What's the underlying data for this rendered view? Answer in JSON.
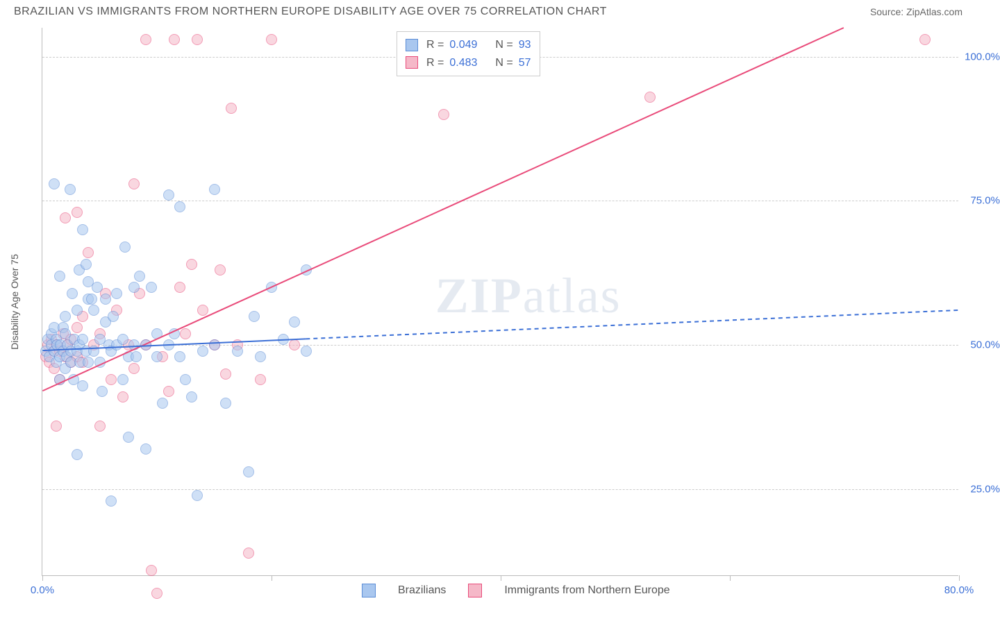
{
  "header": {
    "title": "BRAZILIAN VS IMMIGRANTS FROM NORTHERN EUROPE DISABILITY AGE OVER 75 CORRELATION CHART",
    "source_label": "Source:",
    "source_value": "ZipAtlas.com"
  },
  "watermark": {
    "part1": "ZIP",
    "part2": "atlas"
  },
  "chart": {
    "type": "scatter",
    "y_axis_label": "Disability Age Over 75",
    "xlim": [
      0,
      80
    ],
    "ylim": [
      10,
      105
    ],
    "y_ticks": [
      {
        "value": 25,
        "label": "25.0%"
      },
      {
        "value": 50,
        "label": "50.0%"
      },
      {
        "value": 75,
        "label": "75.0%"
      },
      {
        "value": 100,
        "label": "100.0%"
      }
    ],
    "x_ticks": [
      {
        "value": 0,
        "label": "0.0%"
      },
      {
        "value": 20,
        "label": ""
      },
      {
        "value": 40,
        "label": ""
      },
      {
        "value": 60,
        "label": ""
      },
      {
        "value": 80,
        "label": "80.0%"
      }
    ],
    "background_color": "#ffffff",
    "grid_color": "#cccccc",
    "marker_radius": 8,
    "marker_opacity": 0.55,
    "series": {
      "blue": {
        "label": "Brazilians",
        "fill": "#a9c7ef",
        "stroke": "#5a8cd6",
        "R": "0.049",
        "N": "93",
        "trend": {
          "x1": 0,
          "y1": 49,
          "x2": 80,
          "y2": 56,
          "solid_until_x": 23,
          "color": "#3b6fd6",
          "width": 2
        },
        "points": [
          [
            0.3,
            49
          ],
          [
            0.5,
            51
          ],
          [
            0.6,
            48
          ],
          [
            0.8,
            52
          ],
          [
            0.8,
            50
          ],
          [
            1.0,
            49
          ],
          [
            1.0,
            78
          ],
          [
            1.0,
            53
          ],
          [
            1.2,
            47
          ],
          [
            1.2,
            51
          ],
          [
            1.3,
            50
          ],
          [
            1.5,
            48
          ],
          [
            1.5,
            62
          ],
          [
            1.5,
            44
          ],
          [
            1.6,
            50
          ],
          [
            1.8,
            53
          ],
          [
            1.8,
            49
          ],
          [
            2.0,
            46
          ],
          [
            2.0,
            52
          ],
          [
            2.0,
            55
          ],
          [
            2.1,
            48
          ],
          [
            2.2,
            50
          ],
          [
            2.4,
            77
          ],
          [
            2.5,
            47
          ],
          [
            2.5,
            49
          ],
          [
            2.6,
            59
          ],
          [
            2.7,
            44
          ],
          [
            2.8,
            51
          ],
          [
            3.0,
            31
          ],
          [
            3.0,
            56
          ],
          [
            3.0,
            49
          ],
          [
            3.2,
            63
          ],
          [
            3.2,
            50
          ],
          [
            3.3,
            47
          ],
          [
            3.5,
            70
          ],
          [
            3.5,
            51
          ],
          [
            3.5,
            43
          ],
          [
            3.8,
            64
          ],
          [
            3.8,
            49
          ],
          [
            4.0,
            58
          ],
          [
            4.0,
            61
          ],
          [
            4.0,
            47
          ],
          [
            4.3,
            58
          ],
          [
            4.5,
            56
          ],
          [
            4.5,
            49
          ],
          [
            4.8,
            60
          ],
          [
            5.0,
            47
          ],
          [
            5.0,
            51
          ],
          [
            5.2,
            42
          ],
          [
            5.5,
            54
          ],
          [
            5.5,
            58
          ],
          [
            5.8,
            50
          ],
          [
            6.0,
            23
          ],
          [
            6.0,
            49
          ],
          [
            6.2,
            55
          ],
          [
            6.5,
            59
          ],
          [
            6.5,
            50
          ],
          [
            7.0,
            44
          ],
          [
            7.0,
            51
          ],
          [
            7.2,
            67
          ],
          [
            7.5,
            34
          ],
          [
            7.5,
            48
          ],
          [
            8.0,
            60
          ],
          [
            8.0,
            50
          ],
          [
            8.2,
            48
          ],
          [
            8.5,
            62
          ],
          [
            9.0,
            32
          ],
          [
            9.0,
            50
          ],
          [
            9.5,
            60
          ],
          [
            10.0,
            48
          ],
          [
            10.0,
            52
          ],
          [
            10.5,
            40
          ],
          [
            11.0,
            50
          ],
          [
            11.0,
            76
          ],
          [
            11.5,
            52
          ],
          [
            12.0,
            74
          ],
          [
            12.0,
            48
          ],
          [
            12.5,
            44
          ],
          [
            13.0,
            41
          ],
          [
            13.5,
            24
          ],
          [
            14.0,
            49
          ],
          [
            15.0,
            77
          ],
          [
            15.0,
            50
          ],
          [
            16.0,
            40
          ],
          [
            17.0,
            49
          ],
          [
            18.0,
            28
          ],
          [
            18.5,
            55
          ],
          [
            19.0,
            48
          ],
          [
            20.0,
            60
          ],
          [
            21.0,
            51
          ],
          [
            22.0,
            54
          ],
          [
            23.0,
            49
          ],
          [
            23.0,
            63
          ]
        ]
      },
      "pink": {
        "label": "Immigrants from Northern Europe",
        "fill": "#f5b8c8",
        "stroke": "#e94b7a",
        "R": "0.483",
        "N": "57",
        "trend": {
          "x1": 0,
          "y1": 42,
          "x2": 70,
          "y2": 105,
          "solid_until_x": 70,
          "color": "#e94b7a",
          "width": 2
        },
        "points": [
          [
            0.3,
            48
          ],
          [
            0.5,
            50
          ],
          [
            0.6,
            47
          ],
          [
            0.8,
            51
          ],
          [
            1.0,
            49
          ],
          [
            1.0,
            46
          ],
          [
            1.2,
            36
          ],
          [
            1.3,
            50
          ],
          [
            1.5,
            44
          ],
          [
            1.5,
            49
          ],
          [
            1.8,
            52
          ],
          [
            2.0,
            48
          ],
          [
            2.0,
            72
          ],
          [
            2.2,
            50
          ],
          [
            2.5,
            47
          ],
          [
            2.5,
            51
          ],
          [
            3.0,
            73
          ],
          [
            3.0,
            53
          ],
          [
            3.0,
            48
          ],
          [
            3.5,
            55
          ],
          [
            3.5,
            47
          ],
          [
            4.0,
            66
          ],
          [
            4.5,
            50
          ],
          [
            5.0,
            36
          ],
          [
            5.0,
            52
          ],
          [
            5.5,
            59
          ],
          [
            6.0,
            44
          ],
          [
            6.5,
            56
          ],
          [
            7.0,
            41
          ],
          [
            7.5,
            50
          ],
          [
            8.0,
            78
          ],
          [
            8.0,
            46
          ],
          [
            8.5,
            59
          ],
          [
            9.0,
            50
          ],
          [
            9.0,
            103
          ],
          [
            9.5,
            11
          ],
          [
            10.0,
            7
          ],
          [
            10.5,
            48
          ],
          [
            11.0,
            42
          ],
          [
            11.5,
            103
          ],
          [
            12.0,
            60
          ],
          [
            12.5,
            52
          ],
          [
            13.0,
            64
          ],
          [
            13.5,
            103
          ],
          [
            14.0,
            56
          ],
          [
            15.0,
            50
          ],
          [
            15.5,
            63
          ],
          [
            16.0,
            45
          ],
          [
            16.5,
            91
          ],
          [
            17.0,
            50
          ],
          [
            18.0,
            14
          ],
          [
            19.0,
            44
          ],
          [
            20.0,
            103
          ],
          [
            22.0,
            50
          ],
          [
            35.0,
            90
          ],
          [
            53.0,
            93
          ],
          [
            77.0,
            103
          ]
        ]
      }
    },
    "stats_legend": {
      "R_label": "R =",
      "N_label": "N ="
    }
  }
}
